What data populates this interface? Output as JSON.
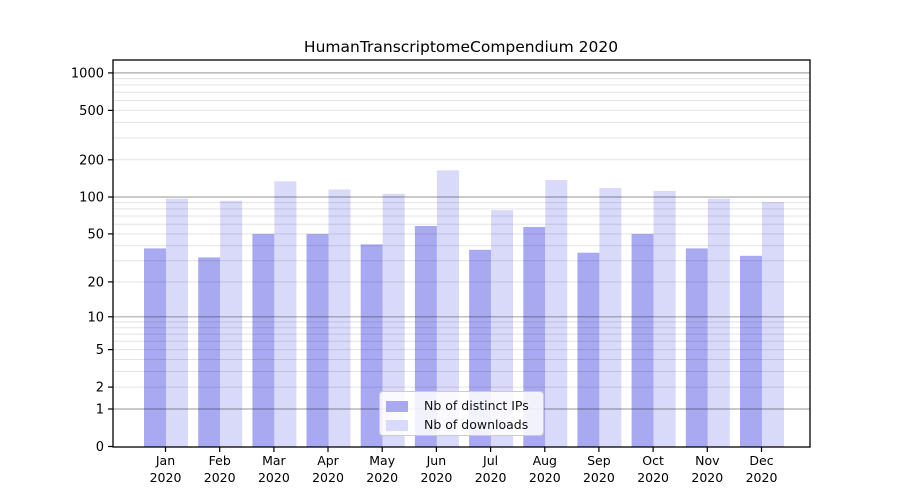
{
  "title": "HumanTranscriptomeCompendium 2020",
  "colors": {
    "distinct_ips": "#a9a9f2",
    "downloads": "#d9d9f9",
    "grid_decade": "rgba(0,0,0,0.33)",
    "grid_minor": "rgba(0,0,0,0.11)",
    "axis_frame": "#000000",
    "tick_text": "#000000",
    "legend_border": "#cccccc"
  },
  "chart_data": {
    "type": "bar",
    "title": "HumanTranscriptomeCompendium 2020",
    "categories": [
      "Jan 2020",
      "Feb 2020",
      "Mar 2020",
      "Apr 2020",
      "May 2020",
      "Jun 2020",
      "Jul 2020",
      "Aug 2020",
      "Sep 2020",
      "Oct 2020",
      "Nov 2020",
      "Dec 2020"
    ],
    "series": [
      {
        "name": "Nb of distinct IPs",
        "color": "#a9a9f2",
        "values": [
          38,
          32,
          50,
          50,
          41,
          58,
          37,
          57,
          35,
          50,
          38,
          33
        ]
      },
      {
        "name": "Nb of downloads",
        "color": "#d9d9f9",
        "values": [
          97,
          93,
          134,
          115,
          106,
          164,
          78,
          137,
          118,
          112,
          97,
          91
        ]
      }
    ],
    "xlabel": "",
    "ylabel": "",
    "y_scale": "log1p",
    "y_ticks": [
      0,
      1,
      2,
      5,
      10,
      20,
      50,
      100,
      200,
      500,
      1000
    ],
    "y_minor_ticks": [
      3,
      4,
      6,
      7,
      8,
      9,
      30,
      40,
      60,
      70,
      80,
      90,
      300,
      400,
      600,
      700,
      800,
      900
    ],
    "y_decade_lines": [
      1,
      10,
      100,
      1000
    ],
    "ylim": [
      0,
      1270
    ],
    "grid": true,
    "legend_position": "lower center"
  }
}
